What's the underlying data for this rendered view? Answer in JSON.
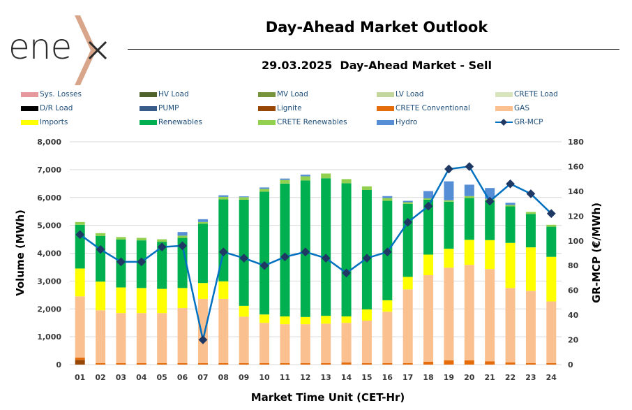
{
  "header": {
    "logo_text": "ene",
    "title": "Day-Ahead Market Outlook",
    "subtitle": "29.03.2025  Day-Ahead Market - Sell"
  },
  "legend": [
    {
      "label": "Sys. Losses",
      "color": "#e6999d",
      "type": "bar"
    },
    {
      "label": "HV Load",
      "color": "#4f6228",
      "type": "bar"
    },
    {
      "label": "MV Load",
      "color": "#77933c",
      "type": "bar"
    },
    {
      "label": "LV Load",
      "color": "#c3d69b",
      "type": "bar"
    },
    {
      "label": "CRETE Load",
      "color": "#d8e4bc",
      "type": "bar"
    },
    {
      "label": "D/R Load",
      "color": "#000000",
      "type": "bar"
    },
    {
      "label": "PUMP",
      "color": "#385d8a",
      "type": "bar"
    },
    {
      "label": "Lignite",
      "color": "#974706",
      "type": "bar"
    },
    {
      "label": "CRETE Conventional",
      "color": "#e46c0a",
      "type": "bar"
    },
    {
      "label": "GAS",
      "color": "#fac090",
      "type": "bar"
    },
    {
      "label": "Imports",
      "color": "#ffff00",
      "type": "bar"
    },
    {
      "label": "Renewables",
      "color": "#00b050",
      "type": "bar"
    },
    {
      "label": "CRETE Renewables",
      "color": "#92d050",
      "type": "bar"
    },
    {
      "label": "Hydro",
      "color": "#558ed5",
      "type": "bar"
    },
    {
      "label": "GR-MCP",
      "color": "#0070c0",
      "marker_color": "#1f3864",
      "type": "line"
    }
  ],
  "chart_data": {
    "type": "bar",
    "stacked": true,
    "title": "29.03.2025  Day-Ahead Market - Sell",
    "xlabel": "Market Time Unit (CET-Hr)",
    "ylabel": "Volume (MWh)",
    "y2label": "GR-MCP (€/MWh)",
    "ylim": [
      0,
      8000
    ],
    "y_ticks": [
      "0",
      "1,000",
      "2,000",
      "3,000",
      "4,000",
      "5,000",
      "6,000",
      "7,000",
      "8,000"
    ],
    "y2lim": [
      0,
      180
    ],
    "y2_ticks": [
      "0",
      "20",
      "40",
      "60",
      "80",
      "100",
      "120",
      "140",
      "160",
      "180"
    ],
    "grid": true,
    "legend_position": "top",
    "categories": [
      "01",
      "02",
      "03",
      "04",
      "05",
      "06",
      "07",
      "08",
      "09",
      "10",
      "11",
      "12",
      "13",
      "14",
      "15",
      "16",
      "17",
      "18",
      "19",
      "20",
      "21",
      "22",
      "23",
      "24"
    ],
    "series": [
      {
        "name": "Lignite",
        "color": "#974706",
        "values": [
          170,
          0,
          0,
          0,
          0,
          0,
          0,
          0,
          0,
          0,
          0,
          0,
          0,
          0,
          0,
          0,
          0,
          0,
          0,
          0,
          0,
          0,
          0,
          0
        ]
      },
      {
        "name": "CRETE Conventional",
        "color": "#e46c0a",
        "values": [
          80,
          50,
          50,
          50,
          50,
          50,
          50,
          50,
          50,
          50,
          50,
          50,
          50,
          80,
          50,
          50,
          50,
          100,
          150,
          150,
          120,
          80,
          50,
          50
        ]
      },
      {
        "name": "GAS",
        "color": "#fac090",
        "values": [
          2200,
          1900,
          1800,
          1800,
          1800,
          1980,
          2310,
          2310,
          1670,
          1450,
          1400,
          1400,
          1420,
          1420,
          1530,
          1850,
          2650,
          3110,
          3330,
          3430,
          3310,
          2670,
          2600,
          2220
        ]
      },
      {
        "name": "Imports",
        "color": "#ffff00",
        "values": [
          1000,
          1030,
          920,
          900,
          870,
          720,
          570,
          630,
          390,
          300,
          280,
          260,
          280,
          230,
          400,
          410,
          450,
          740,
          680,
          900,
          1040,
          1620,
          1560,
          1600
        ]
      },
      {
        "name": "Renewables",
        "color": "#00b050",
        "values": [
          1570,
          1640,
          1720,
          1710,
          1690,
          1800,
          2130,
          2940,
          3810,
          4410,
          4770,
          4900,
          4940,
          4780,
          4290,
          3570,
          2620,
          1970,
          1690,
          1500,
          1430,
          1310,
          1200,
          1080
        ]
      },
      {
        "name": "CRETE Renewables",
        "color": "#92d050",
        "values": [
          100,
          100,
          90,
          90,
          90,
          80,
          60,
          90,
          90,
          100,
          130,
          150,
          170,
          150,
          130,
          100,
          60,
          50,
          50,
          70,
          50,
          50,
          70,
          70
        ]
      },
      {
        "name": "Hydro",
        "color": "#558ed5",
        "values": [
          0,
          0,
          0,
          0,
          0,
          130,
          100,
          60,
          30,
          50,
          50,
          60,
          0,
          0,
          0,
          70,
          50,
          260,
          680,
          410,
          390,
          80,
          0,
          0
        ]
      }
    ],
    "line_series": {
      "name": "GR-MCP",
      "axis": "right",
      "values": [
        105,
        93,
        83,
        83,
        95,
        96,
        20,
        91,
        86,
        80,
        87,
        91,
        86,
        74,
        86,
        91,
        115,
        128,
        158,
        160,
        132,
        146,
        138,
        122
      ]
    }
  }
}
